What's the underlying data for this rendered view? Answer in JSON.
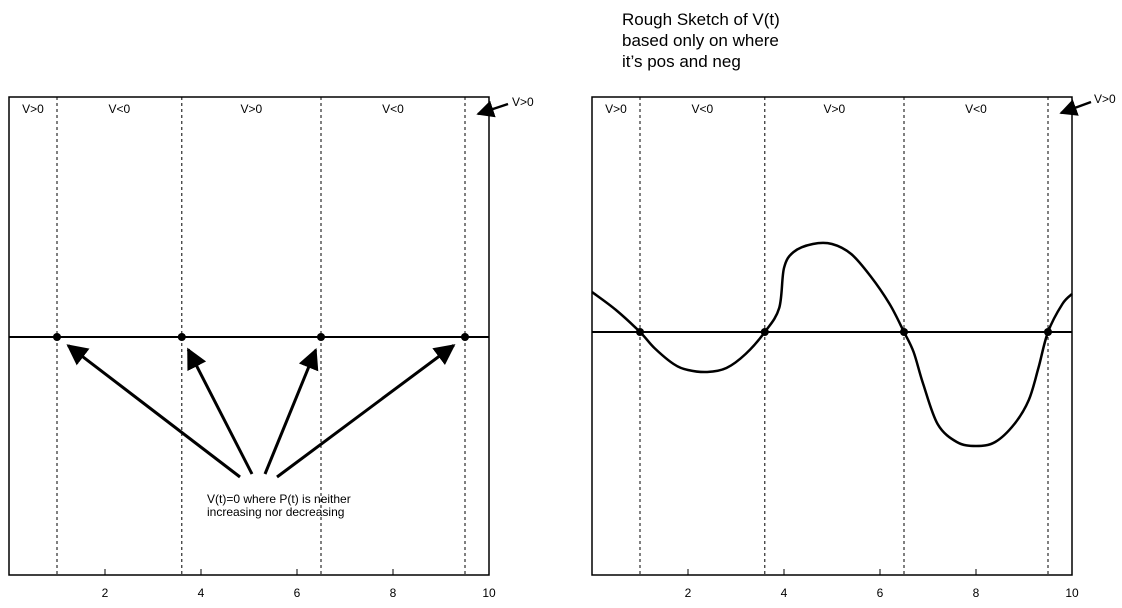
{
  "title_lines": [
    "Rough Sketch of V(t)",
    "based only on where",
    "it’s pos and neg"
  ],
  "region_labels": [
    "V>0",
    "V<0",
    "V>0",
    "V<0"
  ],
  "outside_label": "V>0",
  "zeros_t": [
    1.0,
    3.6,
    6.5,
    9.5
  ],
  "x_ticks": [
    2,
    4,
    6,
    8,
    10
  ],
  "x_range": [
    0,
    10
  ],
  "annotation_lines": [
    "V(t)=0 where P(t) is neither",
    "increasing nor decreasing"
  ],
  "curve_points": [
    [
      0.0,
      1.0
    ],
    [
      0.5,
      0.55
    ],
    [
      1.0,
      0.0
    ],
    [
      1.3,
      -0.4
    ],
    [
      1.7,
      -0.8
    ],
    [
      2.0,
      -0.95
    ],
    [
      2.4,
      -1.0
    ],
    [
      2.8,
      -0.9
    ],
    [
      3.2,
      -0.55
    ],
    [
      3.6,
      0.0
    ],
    [
      3.9,
      0.6
    ],
    [
      4.0,
      1.6
    ],
    [
      4.2,
      2.0
    ],
    [
      4.6,
      2.2
    ],
    [
      5.0,
      2.2
    ],
    [
      5.4,
      1.95
    ],
    [
      5.8,
      1.4
    ],
    [
      6.2,
      0.7
    ],
    [
      6.5,
      0.0
    ],
    [
      6.7,
      -0.5
    ],
    [
      6.9,
      -1.3
    ],
    [
      7.2,
      -2.3
    ],
    [
      7.6,
      -2.75
    ],
    [
      8.0,
      -2.85
    ],
    [
      8.4,
      -2.75
    ],
    [
      8.8,
      -2.3
    ],
    [
      9.1,
      -1.7
    ],
    [
      9.3,
      -0.9
    ],
    [
      9.5,
      0.0
    ],
    [
      9.8,
      0.7
    ],
    [
      10.0,
      0.95
    ]
  ],
  "curve_y_range": [
    -3.0,
    3.0
  ]
}
